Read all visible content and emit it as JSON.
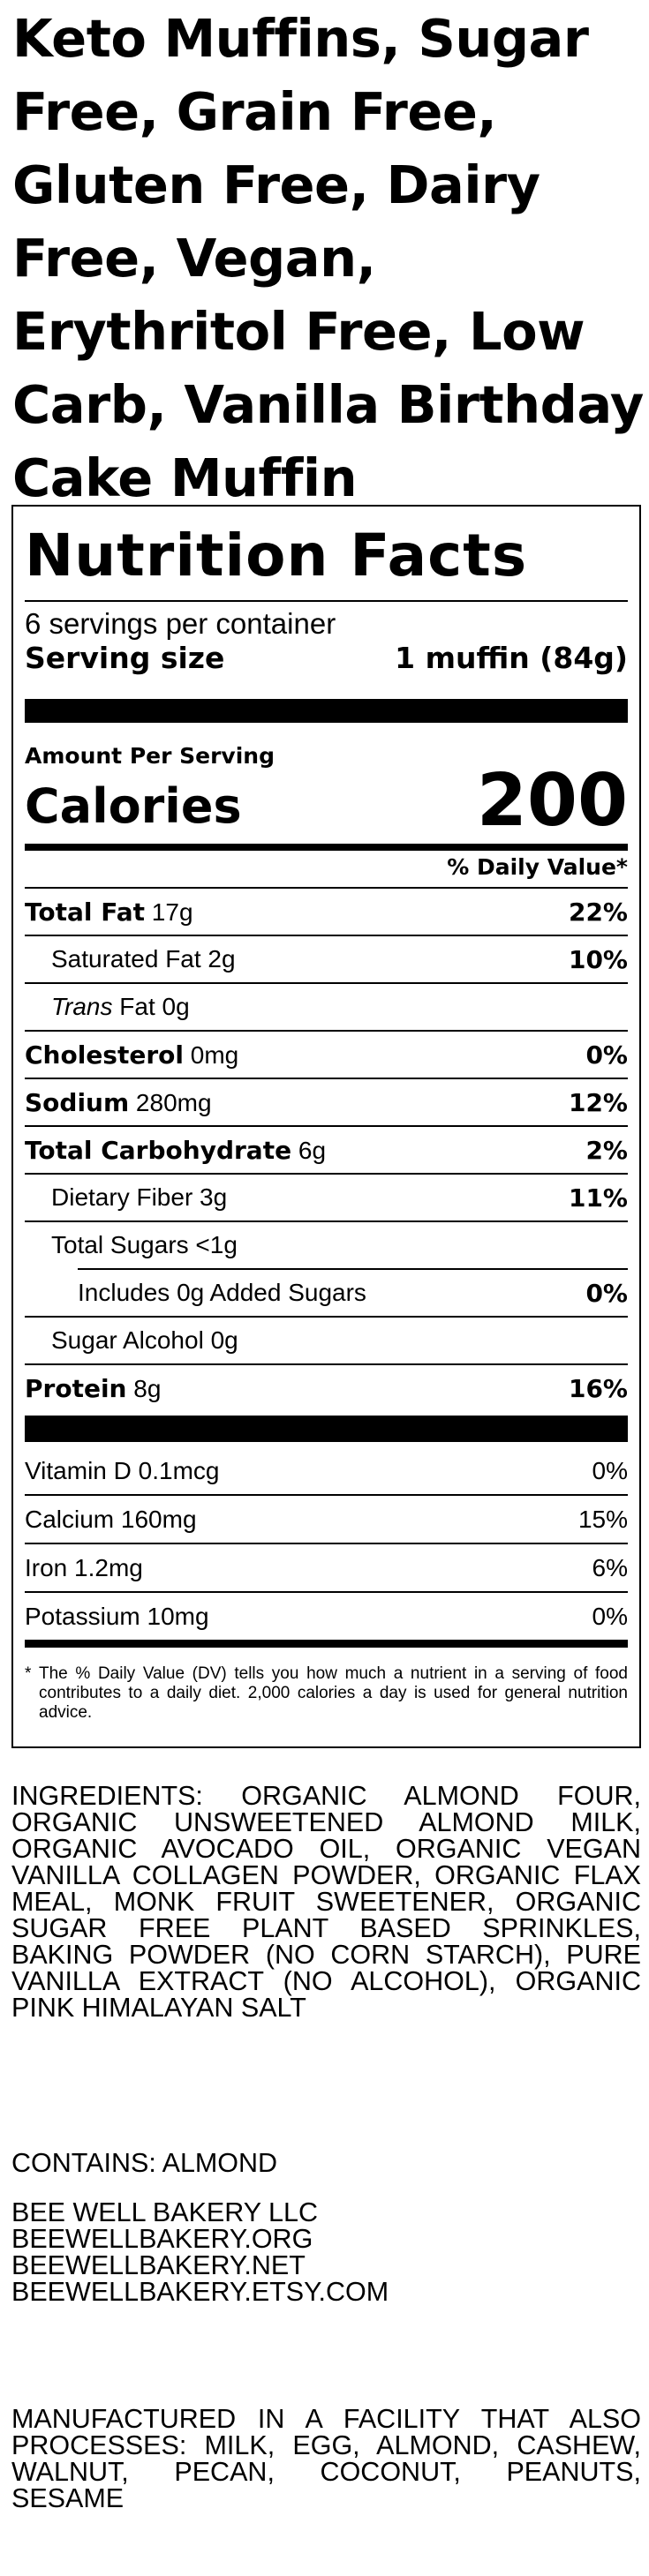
{
  "title": "Keto Muffins, Sugar Free, Grain Free, Gluten Free, Dairy Free, Vegan, Erythritol Free, Low Carb, Vanilla Birthday Cake Muffin",
  "nutrition": {
    "heading": "Nutrition Facts",
    "servings_per_container": "6 servings per container",
    "serving_size_label": "Serving size",
    "serving_size_value": "1 muffin (84g)",
    "amount_per_serving": "Amount Per Serving",
    "calories_label": "Calories",
    "calories_value": "200",
    "daily_value_header": "% Daily Value*",
    "rows": [
      {
        "bold": "Total Fat",
        "italic": "",
        "text": " 17g",
        "pct": "22%"
      },
      {
        "bold": "",
        "italic": "",
        "text": "Saturated Fat 2g",
        "pct": "10%"
      },
      {
        "bold": "",
        "italic": "Trans",
        "text": " Fat 0g",
        "pct": ""
      },
      {
        "bold": "Cholesterol",
        "italic": "",
        "text": " 0mg",
        "pct": "0%"
      },
      {
        "bold": "Sodium",
        "italic": "",
        "text": " 280mg",
        "pct": "12%"
      },
      {
        "bold": "Total Carbohydrate",
        "italic": "",
        "text": " 6g",
        "pct": "2%"
      },
      {
        "bold": "",
        "italic": "",
        "text": "Dietary Fiber 3g",
        "pct": "11%"
      },
      {
        "bold": "",
        "italic": "",
        "text": "Total Sugars <1g",
        "pct": ""
      },
      {
        "bold": "",
        "italic": "",
        "text": "Includes 0g Added Sugars",
        "pct": "0%"
      },
      {
        "bold": "",
        "italic": "",
        "text": "Sugar Alcohol 0g",
        "pct": ""
      },
      {
        "bold": "Protein",
        "italic": "",
        "text": " 8g",
        "pct": "16%"
      }
    ],
    "vitamins": [
      {
        "text": "Vitamin D 0.1mcg",
        "pct": "0%"
      },
      {
        "text": "Calcium 160mg",
        "pct": "15%"
      },
      {
        "text": "Iron 1.2mg",
        "pct": "6%"
      },
      {
        "text": "Potassium 10mg",
        "pct": "0%"
      }
    ],
    "footnote_asterisk": "*",
    "footnote": "The % Daily Value (DV) tells you how much a nutrient in a serving of food contributes to a daily diet. 2,000 calories a day is used for general nutrition advice."
  },
  "ingredients": "INGREDIENTS: ORGANIC ALMOND FOUR, ORGANIC UNSWEETENED ALMOND MILK, ORGANIC AVOCADO OIL, ORGANIC VEGAN VANILLA COLLAGEN POWDER, ORGANIC FLAX MEAL, MONK FRUIT SWEETENER, ORGANIC SUGAR FREE PLANT BASED SPRINKLES, BAKING POWDER (NO CORN STARCH), PURE VANILLA EXTRACT (NO ALCOHOL), ORGANIC PINK HIMALAYAN SALT",
  "contains": "CONTAINS: ALMOND",
  "company": [
    "BEE WELL BAKERY LLC",
    "BEEWELLBAKERY.ORG",
    "BEEWELLBAKERY.NET",
    "BEEWELLBAKERY.ETSY.COM"
  ],
  "facility": "MANUFACTURED IN A FACILITY THAT ALSO PROCESSES: MILK, EGG, ALMOND, CASHEW, WALNUT, PECAN, COCONUT, PEANUTS, SESAME"
}
